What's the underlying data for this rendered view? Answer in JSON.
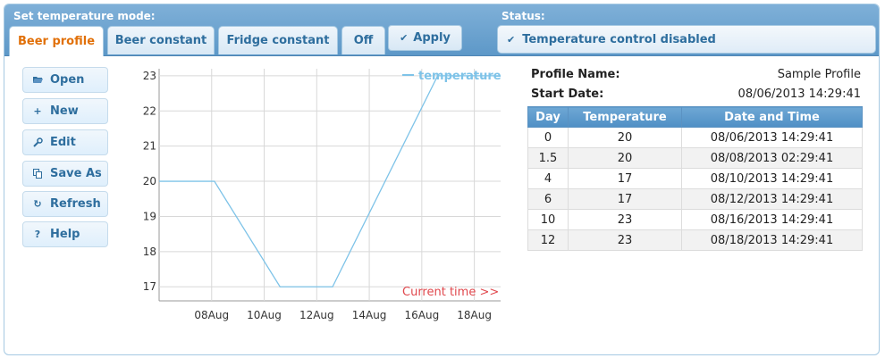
{
  "header": {
    "mode_label": "Set temperature mode:",
    "status_label": "Status:",
    "tabs": [
      {
        "label": "Beer profile",
        "active": true
      },
      {
        "label": "Beer constant",
        "active": false
      },
      {
        "label": "Fridge constant",
        "active": false
      },
      {
        "label": "Off",
        "active": false
      }
    ],
    "apply_label": "Apply",
    "status_text": "Temperature control disabled"
  },
  "sidebar": {
    "buttons": [
      {
        "label": "Open",
        "icon": "folder-open-icon"
      },
      {
        "label": "New",
        "icon": "plus-icon"
      },
      {
        "label": "Edit",
        "icon": "wrench-icon"
      },
      {
        "label": "Save As",
        "icon": "copy-icon"
      },
      {
        "label": "Refresh",
        "icon": "refresh-icon"
      },
      {
        "label": "Help",
        "icon": "help-icon"
      }
    ]
  },
  "profile": {
    "name_label": "Profile Name:",
    "name_value": "Sample Profile",
    "start_label": "Start Date:",
    "start_value": "08/06/2013 14:29:41",
    "columns": [
      "Day",
      "Temperature",
      "Date and Time"
    ],
    "rows": [
      [
        "0",
        "20",
        "08/06/2013 14:29:41"
      ],
      [
        "1.5",
        "20",
        "08/08/2013 02:29:41"
      ],
      [
        "4",
        "17",
        "08/10/2013 14:29:41"
      ],
      [
        "6",
        "17",
        "08/12/2013 14:29:41"
      ],
      [
        "10",
        "23",
        "08/16/2013 14:29:41"
      ],
      [
        "12",
        "23",
        "08/18/2013 14:29:41"
      ]
    ]
  },
  "chart_data": {
    "type": "line",
    "x_ticks": [
      "08Aug",
      "10Aug",
      "12Aug",
      "14Aug",
      "16Aug",
      "18Aug"
    ],
    "y_ticks": [
      "17",
      "18",
      "19",
      "20",
      "21",
      "22",
      "23"
    ],
    "ylim": [
      16.6,
      23.2
    ],
    "xlim": [
      "2013-08-06",
      "2013-08-19"
    ],
    "series": [
      {
        "name": "temperature",
        "color": "#7ec3e8",
        "points": [
          {
            "x": "2013-08-06 14:29",
            "y": 20
          },
          {
            "x": "2013-08-08 02:29",
            "y": 20
          },
          {
            "x": "2013-08-10 14:29",
            "y": 17
          },
          {
            "x": "2013-08-12 14:29",
            "y": 17
          },
          {
            "x": "2013-08-16 14:29",
            "y": 23
          },
          {
            "x": "2013-08-18 14:29",
            "y": 23
          }
        ]
      }
    ],
    "annotation": "Current time >>",
    "annotation_color": "#e0474c",
    "grid": true
  },
  "colors": {
    "accent": "#2e6e9e",
    "active_tab": "#e17009"
  }
}
